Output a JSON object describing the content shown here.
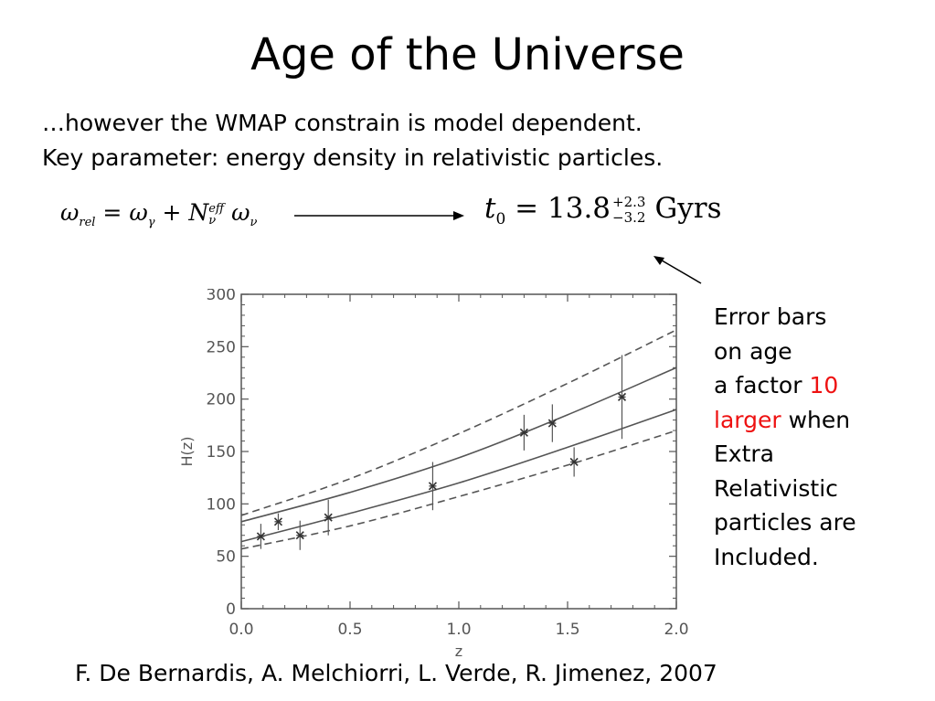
{
  "slide": {
    "title": "Age of the Universe",
    "intro_line1": "…however the WMAP constrain is model dependent.",
    "intro_line2": "Key parameter: energy density in relativistic particles.",
    "equation_left": {
      "omega": "ω",
      "rel": "rel",
      "equals": "=",
      "gamma": "γ",
      "plus": "+",
      "N": "N",
      "eff": "eff",
      "nu": "ν"
    },
    "equation_right": {
      "t": "t",
      "zero": "0",
      "equals": "=",
      "value": "13.8",
      "plus_err": "+2.3",
      "minus_err": "−3.2",
      "unit": "Gyrs"
    },
    "note": {
      "line1": "Error bars",
      "line2": "on age",
      "line3_prefix": "a factor ",
      "line3_highlight": "10",
      "line4_highlight": "larger",
      "line4_suffix": " when",
      "line5": "Extra",
      "line6": "Relativistic",
      "line7": "particles are",
      "line8": "Included."
    },
    "citation": "F. De Bernardis, A. Melchiorri, L. Verde, R. Jimenez, 2007"
  },
  "colors": {
    "highlight": "#ee1111",
    "plot_ink": "#555555"
  },
  "chart_data": {
    "type": "scatter",
    "xlabel": "z",
    "ylabel": "H(z)",
    "xlim": [
      0,
      2
    ],
    "ylim": [
      0,
      300
    ],
    "xticks": [
      "0.0",
      "0.5",
      "1.0",
      "1.5",
      "2.0"
    ],
    "yticks": [
      "0",
      "50",
      "100",
      "150",
      "200",
      "250",
      "300"
    ],
    "points": [
      {
        "x": 0.09,
        "y": 69,
        "err": 12
      },
      {
        "x": 0.17,
        "y": 83,
        "err": 8
      },
      {
        "x": 0.27,
        "y": 70,
        "err": 14
      },
      {
        "x": 0.4,
        "y": 87,
        "err": 17
      },
      {
        "x": 0.88,
        "y": 117,
        "err": 23
      },
      {
        "x": 1.3,
        "y": 168,
        "err": 17
      },
      {
        "x": 1.43,
        "y": 177,
        "err": 18
      },
      {
        "x": 1.53,
        "y": 140,
        "err": 14
      },
      {
        "x": 1.75,
        "y": 202,
        "err": 40
      }
    ],
    "series": [
      {
        "style": "solid",
        "x": [
          0,
          0.5,
          1.0,
          1.5,
          2.0
        ],
        "y": [
          83,
          111,
          144,
          185,
          230
        ]
      },
      {
        "style": "solid",
        "x": [
          0,
          0.5,
          1.0,
          1.5,
          2.0
        ],
        "y": [
          64,
          91,
          120,
          154,
          190
        ]
      },
      {
        "style": "dashed",
        "x": [
          0,
          0.5,
          1.0,
          1.5,
          2.0
        ],
        "y": [
          89,
          124,
          167,
          215,
          266
        ]
      },
      {
        "style": "dashed",
        "x": [
          0,
          0.5,
          1.0,
          1.5,
          2.0
        ],
        "y": [
          57,
          79,
          107,
          137,
          170
        ]
      }
    ]
  }
}
